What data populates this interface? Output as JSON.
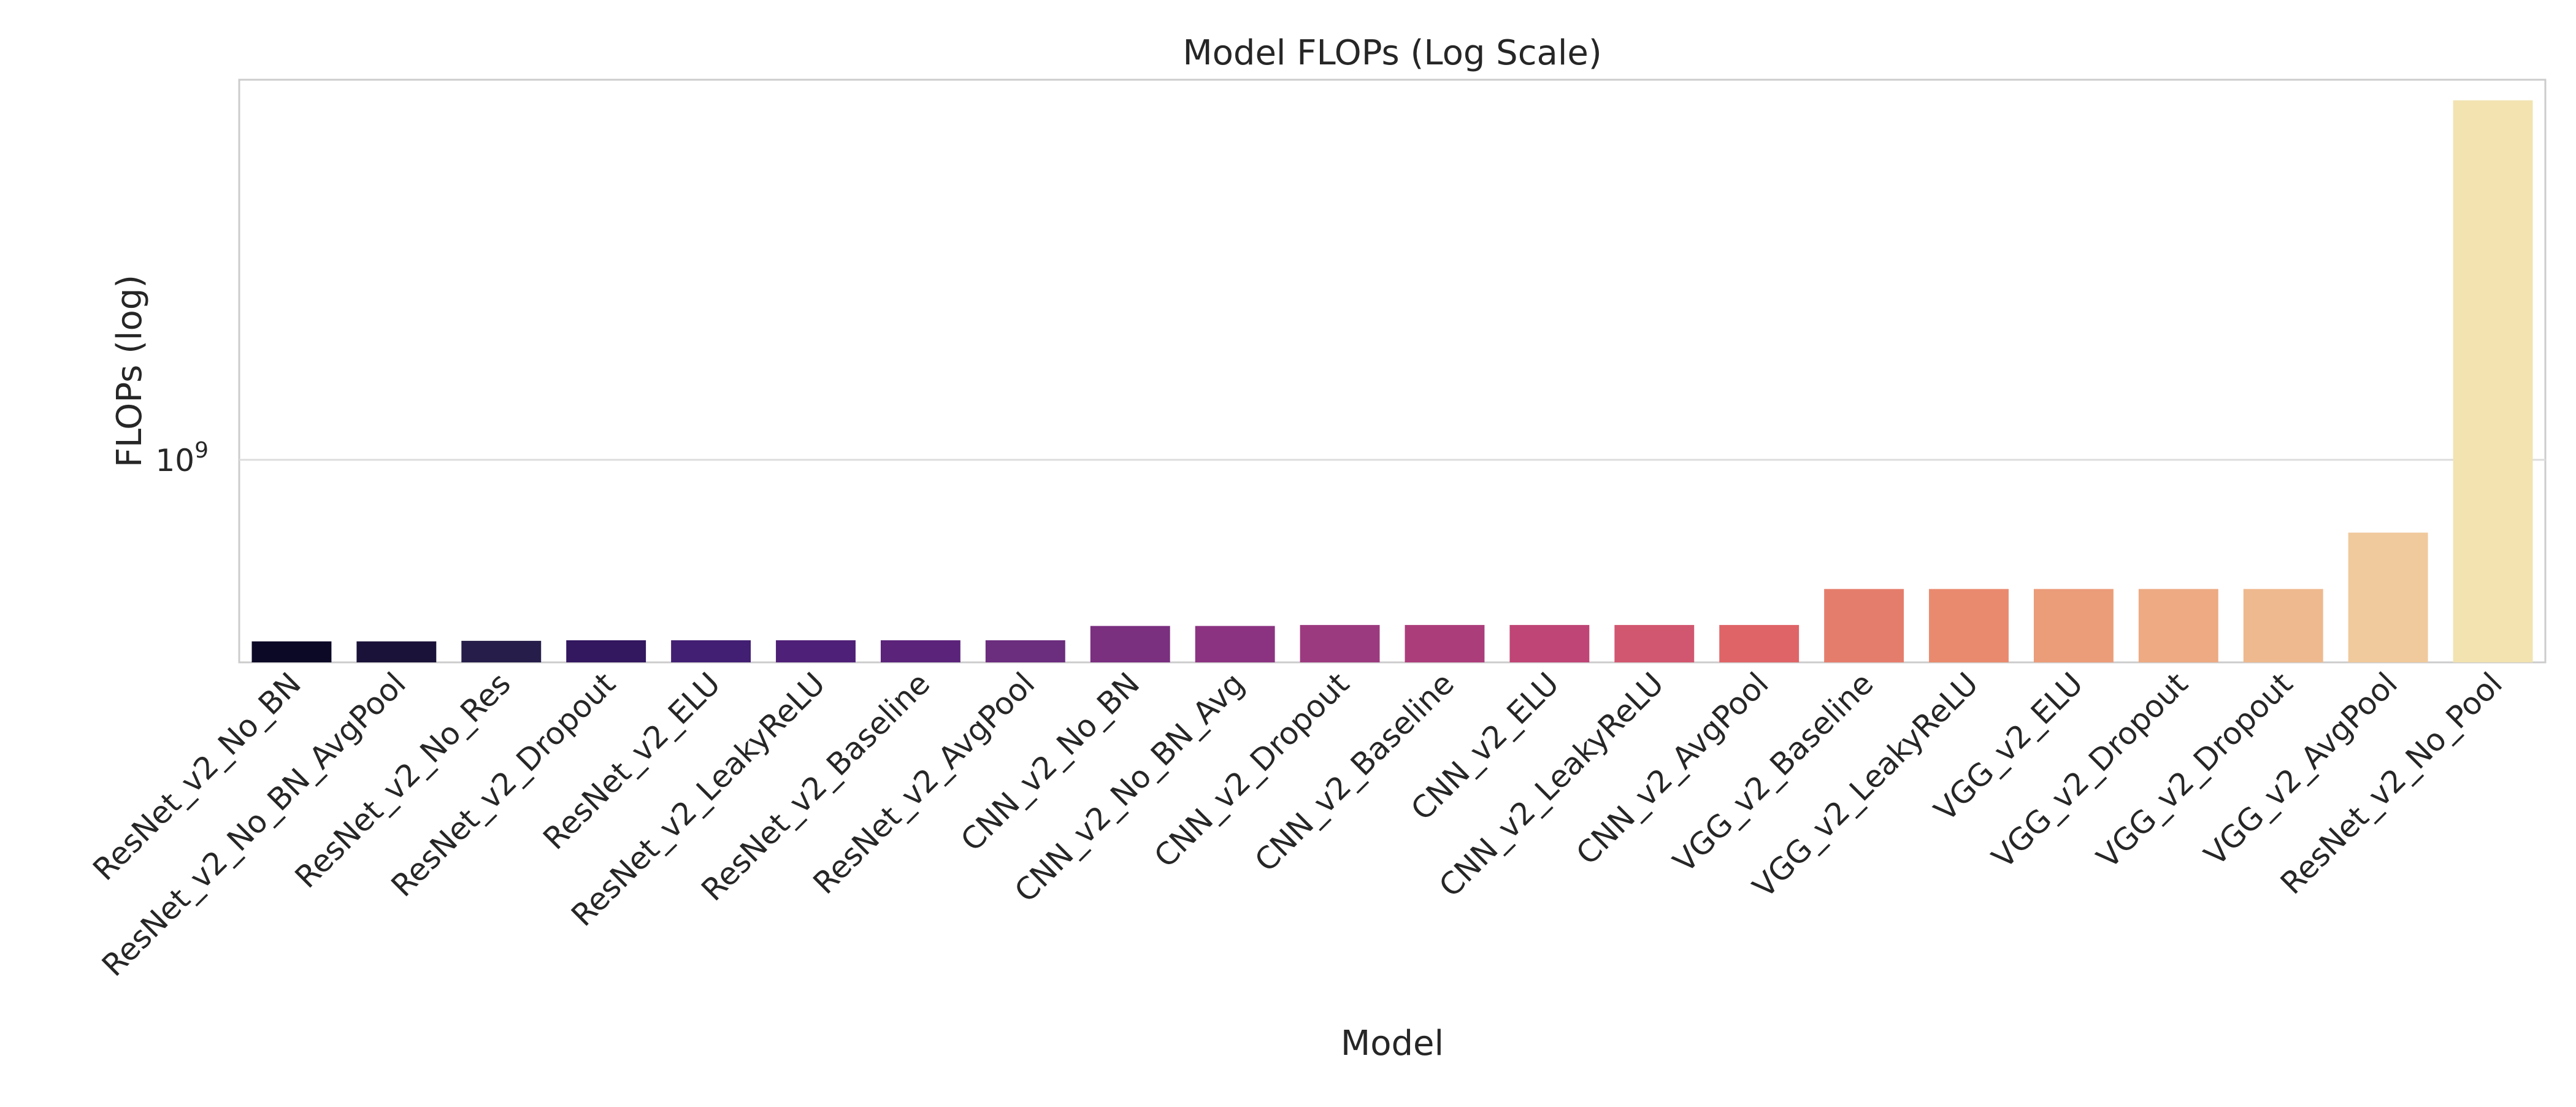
{
  "chart_data": {
    "type": "bar",
    "title": "Model FLOPs (Log Scale)",
    "xlabel": "Model",
    "ylabel": "FLOPs (log)",
    "yscale": "log",
    "ylim": [
      180000000,
      25000000000
    ],
    "yticks": [
      {
        "value": 1000000000,
        "base": "10",
        "exponent": "9"
      }
    ],
    "grid": true,
    "legend": "none",
    "categories": [
      "ResNet_v2_No_BN",
      "ResNet_v2_No_BN_AvgPool",
      "ResNet_v2_No_Res",
      "ResNet_v2_Dropout",
      "ResNet_v2_ELU",
      "ResNet_v2_LeakyReLU",
      "ResNet_v2_Baseline",
      "ResNet_v2_AvgPool",
      "CNN_v2_No_BN",
      "CNN_v2_No_BN_Avg",
      "CNN_v2_Dropout",
      "CNN_v2_Baseline",
      "CNN_v2_ELU",
      "CNN_v2_LeakyReLU",
      "CNN_v2_AvgPool",
      "VGG_v2_Baseline",
      "VGG_v2_LeakyReLU",
      "VGG_v2_ELU",
      "VGG_v2_Dropout",
      "VGG_v2_Dropout",
      "VGG_v2_AvgPool",
      "ResNet_v2_No_Pool"
    ],
    "values": [
      215000000,
      215000000,
      216000000,
      217000000,
      217000000,
      217000000,
      217000000,
      217000000,
      245000000,
      245000000,
      247000000,
      247000000,
      247000000,
      247000000,
      247000000,
      335000000,
      335000000,
      335000000,
      335000000,
      335000000,
      540000000,
      21000000000
    ],
    "colors": [
      "#0c0927",
      "#1b1239",
      "#261d4a",
      "#33175f",
      "#421f73",
      "#4f2077",
      "#5b237a",
      "#6b2d7e",
      "#7a2f7f",
      "#8b3381",
      "#9c3a7f",
      "#ac3d7b",
      "#bf4576",
      "#d1566f",
      "#df6467",
      "#e57d6c",
      "#e98a6e",
      "#eb9c79",
      "#edaa83",
      "#eeb98e",
      "#f0c99c",
      "#f2e3b1"
    ]
  }
}
